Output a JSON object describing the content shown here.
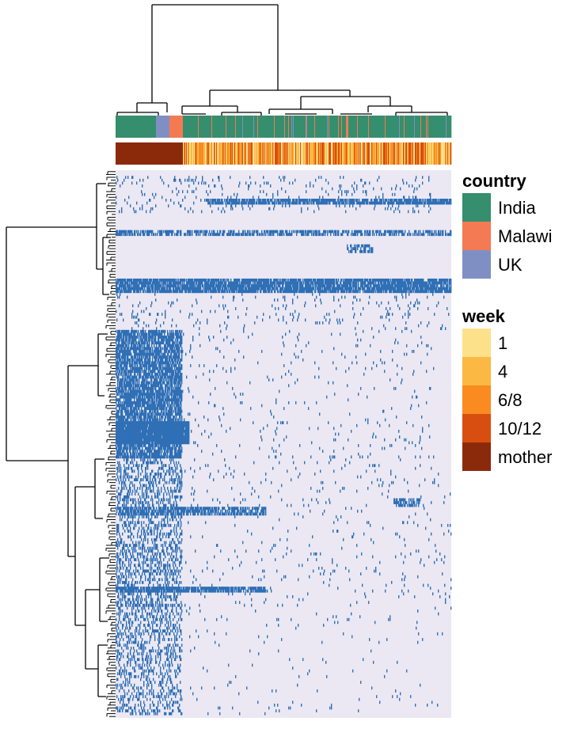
{
  "chart_data": {
    "type": "heatmap",
    "title": "",
    "xlabel": "",
    "ylabel": "",
    "grid": false,
    "legend_placement": "right",
    "cell_values": [
      "absent",
      "present"
    ],
    "cell_colors": {
      "absent": "#ebe8f3",
      "present": "#2f6fb5"
    },
    "dendrogram_color": "#000000",
    "annotation_tracks": [
      "country",
      "week"
    ],
    "legends": [
      {
        "title": "country",
        "entries": [
          {
            "label": "India",
            "color": "#358e6e"
          },
          {
            "label": "Malawi",
            "color": "#f47a53"
          },
          {
            "label": "UK",
            "color": "#7f8fc4"
          }
        ]
      },
      {
        "title": "week",
        "entries": [
          {
            "label": "1",
            "color": "#fde18a"
          },
          {
            "label": "4",
            "color": "#fbb843"
          },
          {
            "label": "6/8",
            "color": "#f98b20"
          },
          {
            "label": "10/12",
            "color": "#d84e10"
          },
          {
            "label": "mother",
            "color": "#8b2a0b"
          }
        ]
      }
    ],
    "row_bands": [
      {
        "rows": [
          2,
          14
        ],
        "cols": [
          0.0,
          0.94
        ],
        "density": 0.06
      },
      {
        "rows": [
          10,
          11
        ],
        "cols": [
          0.27,
          1.0
        ],
        "density": 0.8
      },
      {
        "rows": [
          21,
          22
        ],
        "cols": [
          0.0,
          1.0
        ],
        "density": 0.55
      },
      {
        "rows": [
          26,
          28
        ],
        "cols": [
          0.69,
          0.77
        ],
        "density": 0.6
      },
      {
        "rows": [
          38,
          42
        ],
        "cols": [
          0.0,
          1.0
        ],
        "density": 0.85
      },
      {
        "rows": [
          43,
          55
        ],
        "cols": [
          0.0,
          1.0
        ],
        "density": 0.04
      },
      {
        "rows": [
          56,
          100
        ],
        "cols": [
          0.0,
          0.2
        ],
        "density": 0.75
      },
      {
        "rows": [
          56,
          100
        ],
        "cols": [
          0.2,
          0.95
        ],
        "density": 0.02
      },
      {
        "rows": [
          88,
          95
        ],
        "cols": [
          0.0,
          0.22
        ],
        "density": 0.95
      },
      {
        "rows": [
          100,
          152
        ],
        "cols": [
          0.0,
          0.2
        ],
        "density": 0.3
      },
      {
        "rows": [
          100,
          152
        ],
        "cols": [
          0.2,
          1.0
        ],
        "density": 0.02
      },
      {
        "rows": [
          118,
          120
        ],
        "cols": [
          0.0,
          0.45
        ],
        "density": 0.65
      },
      {
        "rows": [
          115,
          117
        ],
        "cols": [
          0.83,
          0.91
        ],
        "density": 0.6
      },
      {
        "rows": [
          146,
          147
        ],
        "cols": [
          0.0,
          0.45
        ],
        "density": 0.8
      },
      {
        "rows": [
          152,
          190
        ],
        "cols": [
          0.0,
          0.2
        ],
        "density": 0.25
      },
      {
        "rows": [
          152,
          190
        ],
        "cols": [
          0.2,
          1.0
        ],
        "density": 0.01
      }
    ]
  }
}
